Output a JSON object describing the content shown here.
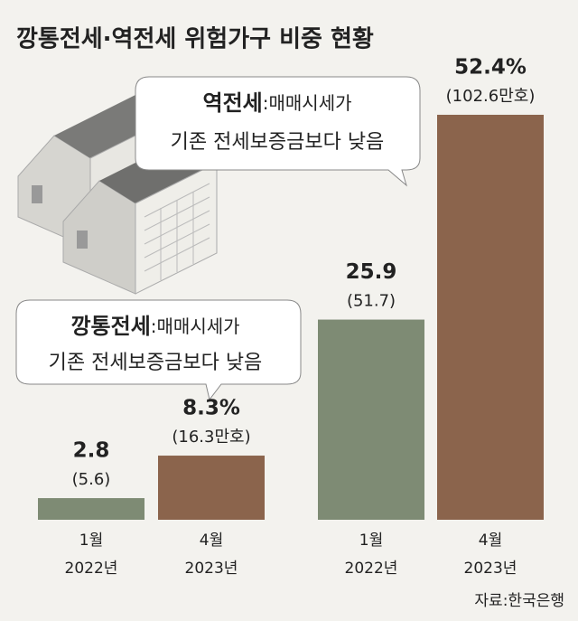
{
  "chart_data": {
    "type": "bar",
    "title": "깡통전세·역전세 위험가구 비중 현황",
    "categories": [
      [
        "1월",
        "2022년"
      ],
      [
        "4월",
        "2023년"
      ],
      [
        "1월",
        "2022년"
      ],
      [
        "4월",
        "2023년"
      ]
    ],
    "values": [
      2.8,
      8.3,
      25.9,
      52.4
    ],
    "value_labels": [
      "2.8",
      "8.3%",
      "25.9",
      "52.4%"
    ],
    "household_labels": [
      "(5.6)",
      "(16.3만호)",
      "(51.7)",
      "(102.6만호)"
    ],
    "colors": [
      "#7e8b74",
      "#8b644c",
      "#7e8b74",
      "#8b644c"
    ],
    "annotations": [
      {
        "term": "깡통전세",
        "text": ":매매시세가",
        "line2": "기존 전세보증금보다 낮음"
      },
      {
        "term": "역전세",
        "text": ":매매시세가",
        "line2": "기존 전세보증금보다 낮음"
      }
    ],
    "source": "자료:한국은행"
  }
}
